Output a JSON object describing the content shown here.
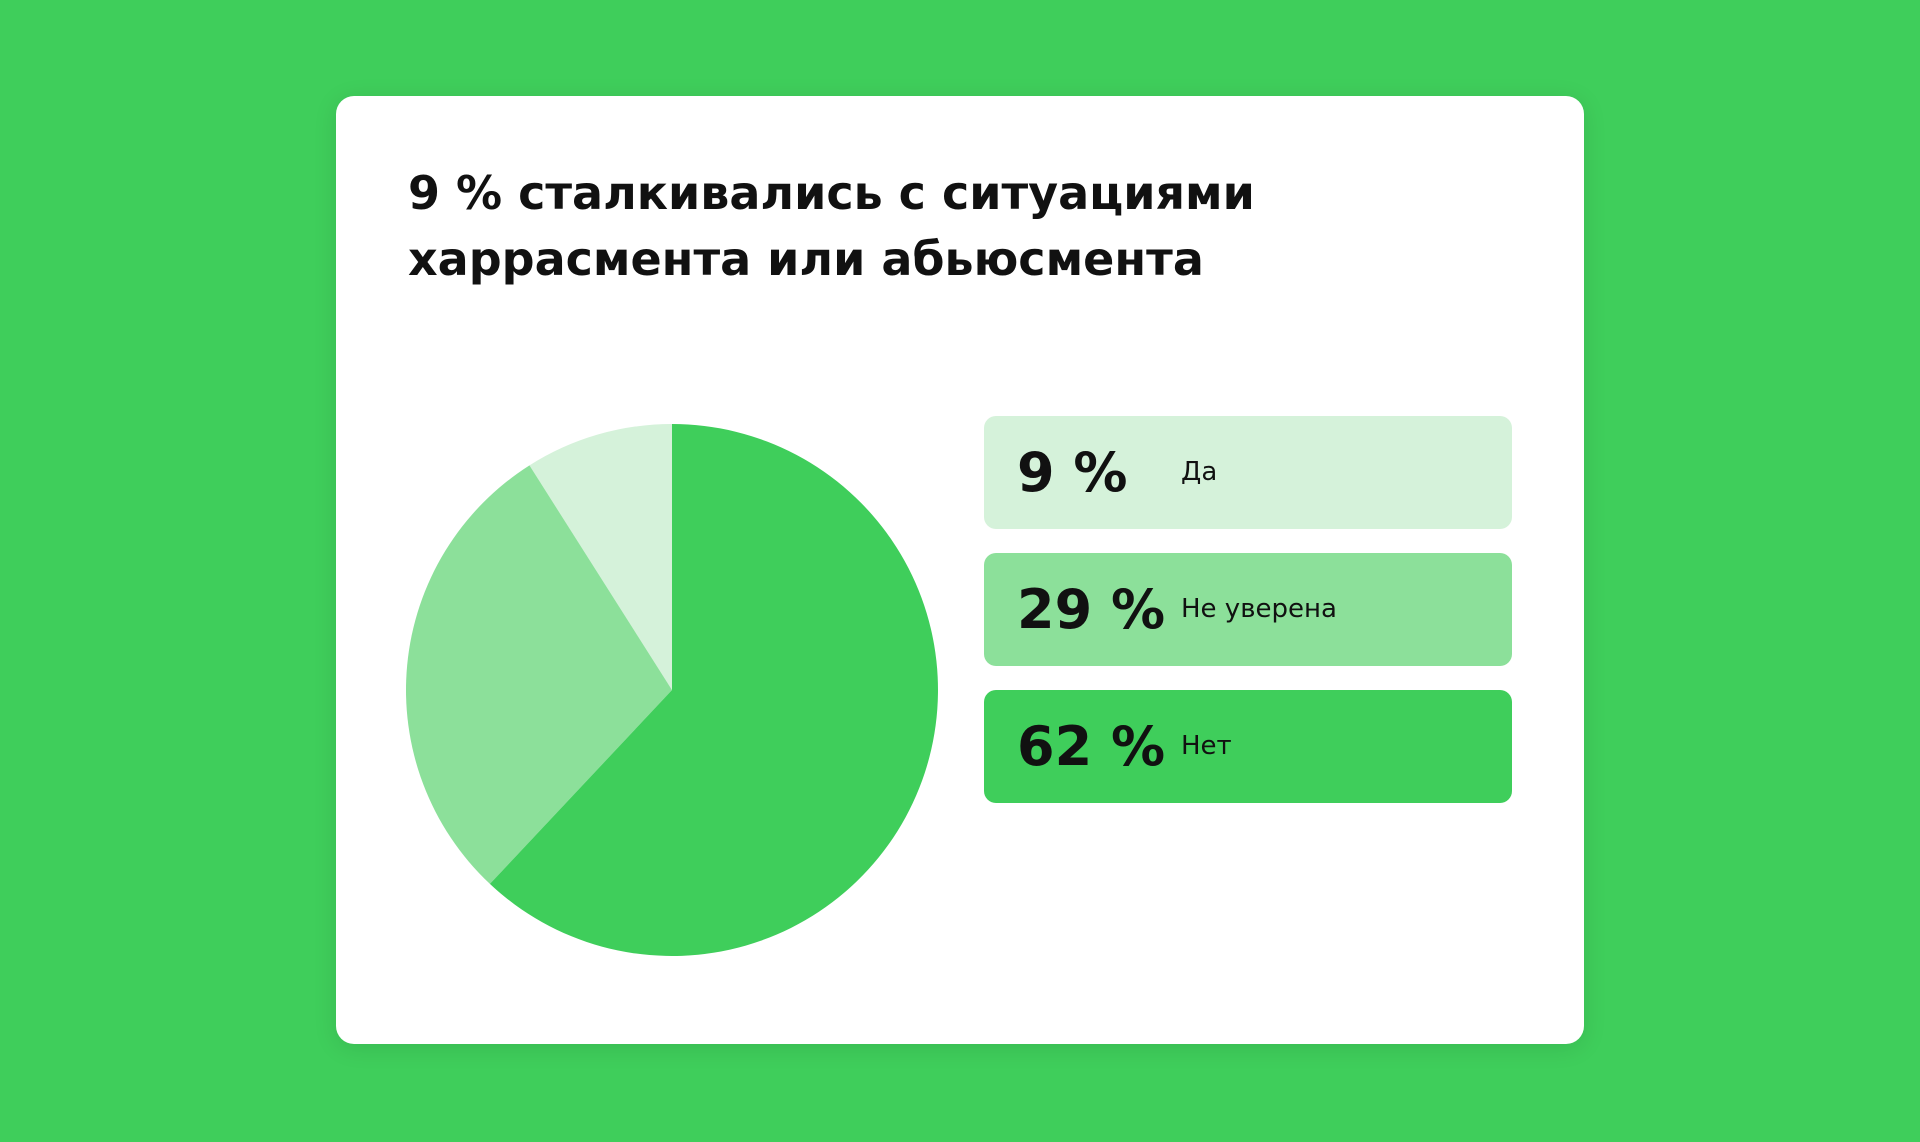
{
  "card": {
    "title": "9 % сталкивались с ситуациями харрасмента или абьюсмента"
  },
  "chart_data": {
    "type": "pie",
    "title": "9 % сталкивались с ситуациями харрасмента или абьюсмента",
    "categories": [
      "Да",
      "Не уверена",
      "Нет"
    ],
    "values": [
      9,
      29,
      62
    ],
    "value_labels": [
      "9 %",
      "29 %",
      "62 %"
    ],
    "colors": [
      "#d5f2da",
      "#8ce09a",
      "#3fce5b"
    ],
    "legend_placement": "right",
    "start_angle": "top, counter-clockwise order from the smallest slice"
  },
  "theme": {
    "background": "#3fce5b",
    "card": "#ffffff",
    "text": "#111111"
  }
}
